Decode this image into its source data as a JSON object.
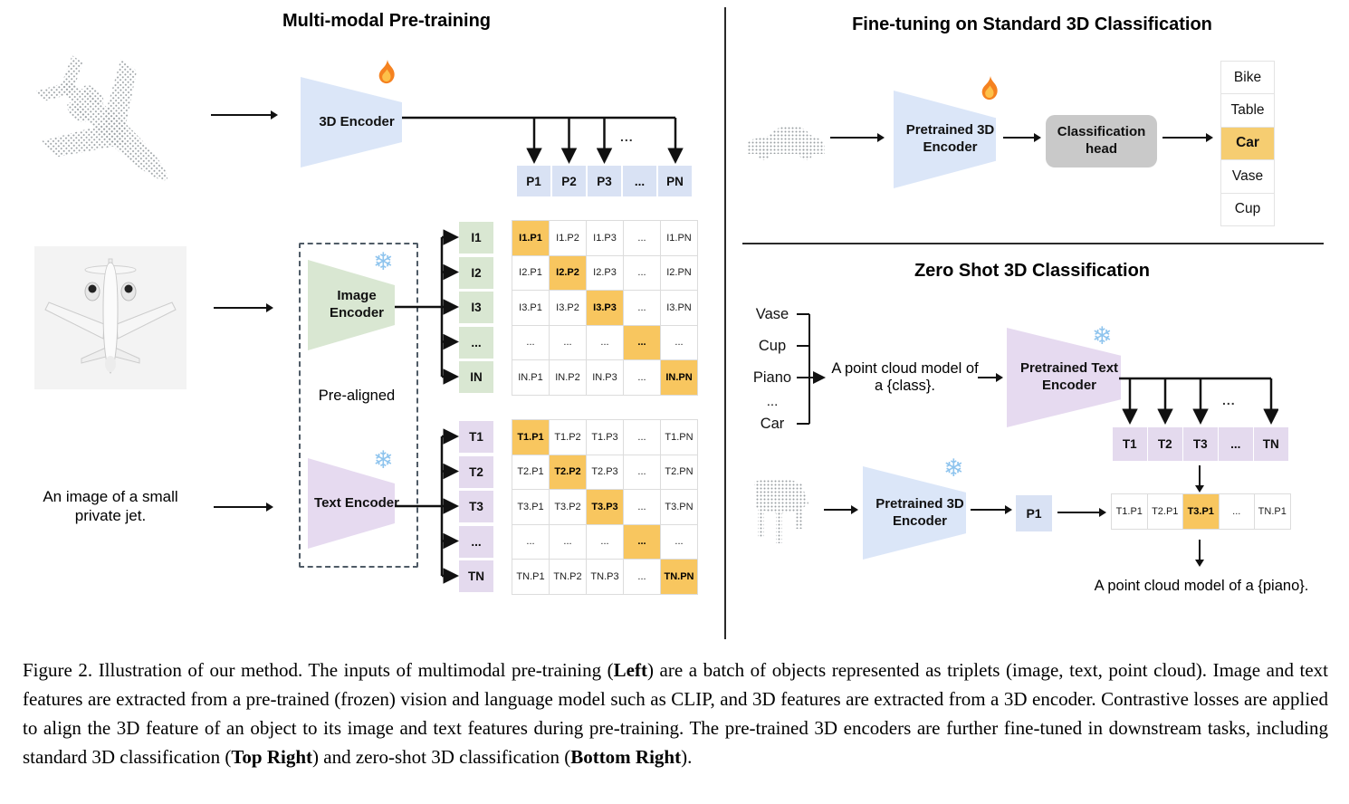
{
  "left": {
    "title": "Multi-modal Pre-training",
    "encoder_3d": {
      "label": "3D Encoder"
    },
    "p_row": {
      "cells": [
        "P1",
        "P2",
        "P3",
        "...",
        "PN"
      ]
    },
    "ellipsis": "...",
    "image_encoder": {
      "label": "Image Encoder"
    },
    "text_encoder": {
      "label": "Text Encoder"
    },
    "pre_aligned_label": "Pre-aligned",
    "image_features": {
      "cells": [
        "I1",
        "I2",
        "I3",
        "...",
        "IN"
      ]
    },
    "text_features": {
      "cells": [
        "T1",
        "T2",
        "T3",
        "...",
        "TN"
      ]
    },
    "image_matrix": {
      "highlight": "diagonal",
      "rows": [
        [
          "I1.P1",
          "I1.P2",
          "I1.P3",
          "...",
          "I1.PN"
        ],
        [
          "I2.P1",
          "I2.P2",
          "I2.P3",
          "...",
          "I2.PN"
        ],
        [
          "I3.P1",
          "I3.P2",
          "I3.P3",
          "...",
          "I3.PN"
        ],
        [
          "...",
          "...",
          "...",
          "...",
          "..."
        ],
        [
          "IN.P1",
          "IN.P2",
          "IN.P3",
          "...",
          "IN.PN"
        ]
      ]
    },
    "text_matrix": {
      "highlight": "diagonal",
      "rows": [
        [
          "T1.P1",
          "T1.P2",
          "T1.P3",
          "...",
          "T1.PN"
        ],
        [
          "T2.P1",
          "T2.P2",
          "T2.P3",
          "...",
          "T2.PN"
        ],
        [
          "T3.P1",
          "T3.P2",
          "T3.P3",
          "...",
          "T3.PN"
        ],
        [
          "...",
          "...",
          "...",
          "...",
          "..."
        ],
        [
          "TN.P1",
          "TN.P2",
          "TN.P3",
          "...",
          "TN.PN"
        ]
      ]
    },
    "image_caption_text": "An image of a small private jet."
  },
  "top_right": {
    "title": "Fine-tuning on Standard 3D Classification",
    "encoder": {
      "label": "Pretrained 3D Encoder"
    },
    "head": {
      "label": "Classification head"
    },
    "classes": {
      "cells": [
        "Bike",
        "Table",
        "Car",
        "Vase",
        "Cup"
      ],
      "highlight": 2
    }
  },
  "bottom_right": {
    "title": "Zero Shot 3D Classification",
    "class_prompts": [
      "Vase",
      "Cup",
      "Piano",
      "...",
      "Car"
    ],
    "prompt": "A point cloud model of a {class}.",
    "text_encoder": {
      "label": "Pretrained Text Encoder"
    },
    "t_row": {
      "cells": [
        "T1",
        "T2",
        "T3",
        "...",
        "TN"
      ]
    },
    "encoder_3d": {
      "label": "Pretrained 3D Encoder"
    },
    "p1_label": "P1",
    "result_row": {
      "cells": [
        "T1.P1",
        "T2.P1",
        "T3.P1",
        "...",
        "TN.P1"
      ],
      "highlight": 2
    },
    "result_prompt": "A point cloud model of a {piano}.",
    "ellipsis": "..."
  },
  "figure_caption": {
    "segments": [
      {
        "text": "Figure 2. Illustration of our method. The inputs of multimodal pre-training ("
      },
      {
        "text": "Left",
        "bold": true
      },
      {
        "text": ") are a batch of objects represented as triplets (image, text, point cloud). Image and text features are extracted from a pre-trained (frozen) vision and language model such as CLIP, and 3D features are extracted from a 3D encoder. Contrastive losses are applied to align the 3D feature of an object to its image and text features during pre-training. The pre-trained 3D encoders are further fine-tuned in downstream tasks, including standard 3D classification ("
      },
      {
        "text": "Top Right",
        "bold": true
      },
      {
        "text": ") and zero-shot 3D classification ("
      },
      {
        "text": "Bottom Right",
        "bold": true
      },
      {
        "text": ")."
      }
    ]
  },
  "colors": {
    "highlight_orange": "#f8c65f",
    "class_highlight_orange": "#f6cd71",
    "feature_blue": "#d9e2f4",
    "feature_green": "#d9e7d2",
    "feature_purple": "#e4daee",
    "head_gray": "#c9c9c9",
    "point_cloud_gray": "#9aa0a3"
  }
}
